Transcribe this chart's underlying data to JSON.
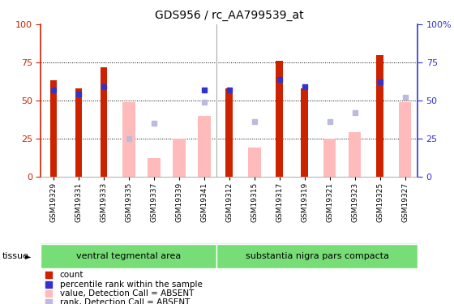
{
  "title": "GDS956 / rc_AA799539_at",
  "categories": [
    "GSM19329",
    "GSM19331",
    "GSM19333",
    "GSM19335",
    "GSM19337",
    "GSM19339",
    "GSM19341",
    "GSM19312",
    "GSM19315",
    "GSM19317",
    "GSM19319",
    "GSM19321",
    "GSM19323",
    "GSM19325",
    "GSM19327"
  ],
  "groups": [
    {
      "name": "ventral tegmental area",
      "n_items": 7
    },
    {
      "name": "substantia nigra pars compacta",
      "n_items": 8
    }
  ],
  "red_bars": [
    63,
    58,
    72,
    0,
    0,
    0,
    0,
    58,
    0,
    76,
    58,
    0,
    0,
    80,
    0
  ],
  "blue_squares": [
    57,
    54,
    59,
    0,
    0,
    0,
    57,
    57,
    0,
    64,
    59,
    0,
    0,
    62,
    0
  ],
  "pink_bars": [
    0,
    0,
    0,
    49,
    12,
    25,
    40,
    0,
    19,
    0,
    0,
    25,
    29,
    0,
    49
  ],
  "lavender_squares": [
    0,
    0,
    0,
    25,
    35,
    0,
    49,
    0,
    36,
    0,
    0,
    36,
    42,
    0,
    52
  ],
  "ylim": [
    0,
    100
  ],
  "yticks": [
    0,
    25,
    50,
    75,
    100
  ],
  "red_color": "#cc2200",
  "blue_color": "#3333cc",
  "pink_color": "#ffbbbb",
  "lavender_color": "#bbbbdd",
  "group_color": "#77dd77",
  "tissue_label": "tissue",
  "legend_items": [
    {
      "color": "#cc2200",
      "label": "count",
      "marker": "s"
    },
    {
      "color": "#3333cc",
      "label": "percentile rank within the sample",
      "marker": "s"
    },
    {
      "color": "#ffbbbb",
      "label": "value, Detection Call = ABSENT",
      "marker": "s"
    },
    {
      "color": "#bbbbdd",
      "label": "rank, Detection Call = ABSENT",
      "marker": "s"
    }
  ]
}
